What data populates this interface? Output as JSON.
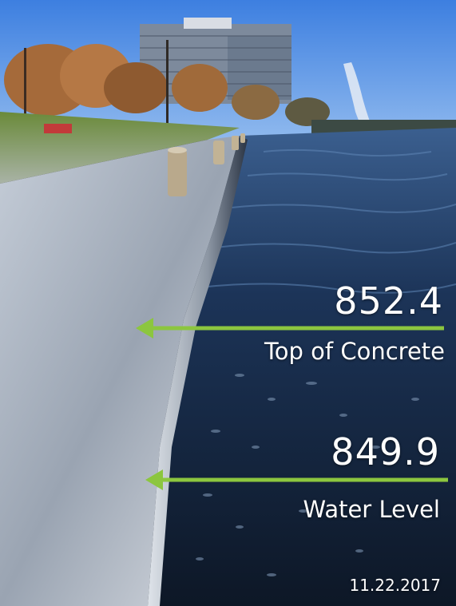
{
  "annotations": {
    "top_of_concrete": {
      "elevation": "852.4",
      "label": "Top of Concrete"
    },
    "water_level": {
      "elevation": "849.9",
      "label": "Water Level"
    }
  },
  "date": "11.22.2017",
  "colors": {
    "arrow": "#8cc63f",
    "text": "#ffffff"
  }
}
